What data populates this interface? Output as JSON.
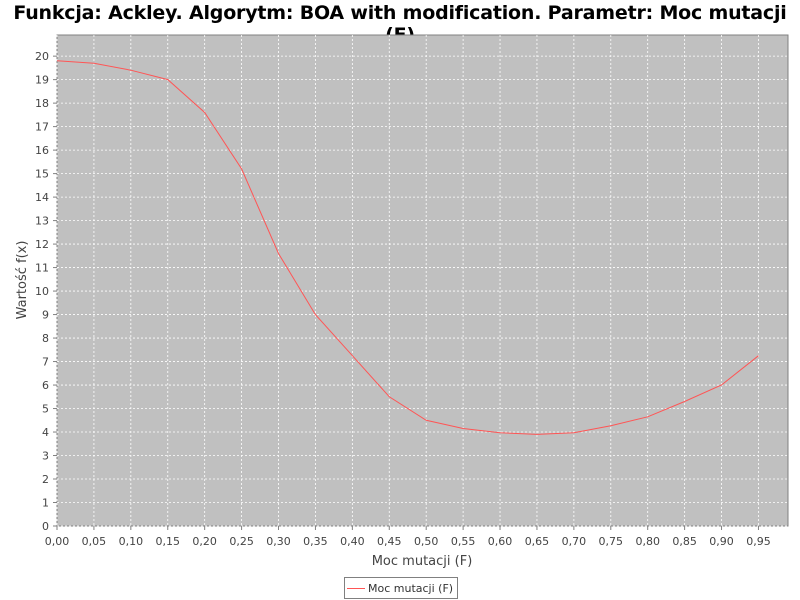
{
  "chart_data": {
    "type": "line",
    "title": "Funkcja: Ackley. Algorytm: BOA with modification. Parametr: Moc mutacji (F)",
    "xlabel": "Moc mutacji (F)",
    "ylabel": "Wartość f(x)",
    "xlim": [
      0.0,
      0.99
    ],
    "ylim": [
      0,
      20.9
    ],
    "x_ticks": [
      "0,00",
      "0,05",
      "0,10",
      "0,15",
      "0,20",
      "0,25",
      "0,30",
      "0,35",
      "0,40",
      "0,45",
      "0,50",
      "0,55",
      "0,60",
      "0,65",
      "0,70",
      "0,75",
      "0,80",
      "0,85",
      "0,90",
      "0,95"
    ],
    "y_ticks": [
      "0",
      "1",
      "2",
      "3",
      "4",
      "5",
      "6",
      "7",
      "8",
      "9",
      "10",
      "11",
      "12",
      "13",
      "14",
      "15",
      "16",
      "17",
      "18",
      "19",
      "20"
    ],
    "grid": true,
    "legend_position": "bottom-center",
    "series": [
      {
        "name": "Moc mutacji (F)",
        "color": "#ff5555",
        "x": [
          0.0,
          0.05,
          0.1,
          0.15,
          0.2,
          0.25,
          0.3,
          0.35,
          0.4,
          0.45,
          0.5,
          0.55,
          0.6,
          0.65,
          0.7,
          0.75,
          0.8,
          0.85,
          0.9,
          0.95
        ],
        "y": [
          19.8,
          19.7,
          19.4,
          19.0,
          17.6,
          15.2,
          11.6,
          9.0,
          7.25,
          5.5,
          4.5,
          4.15,
          3.97,
          3.9,
          3.97,
          4.27,
          4.65,
          5.3,
          6.0,
          7.25
        ]
      }
    ]
  }
}
